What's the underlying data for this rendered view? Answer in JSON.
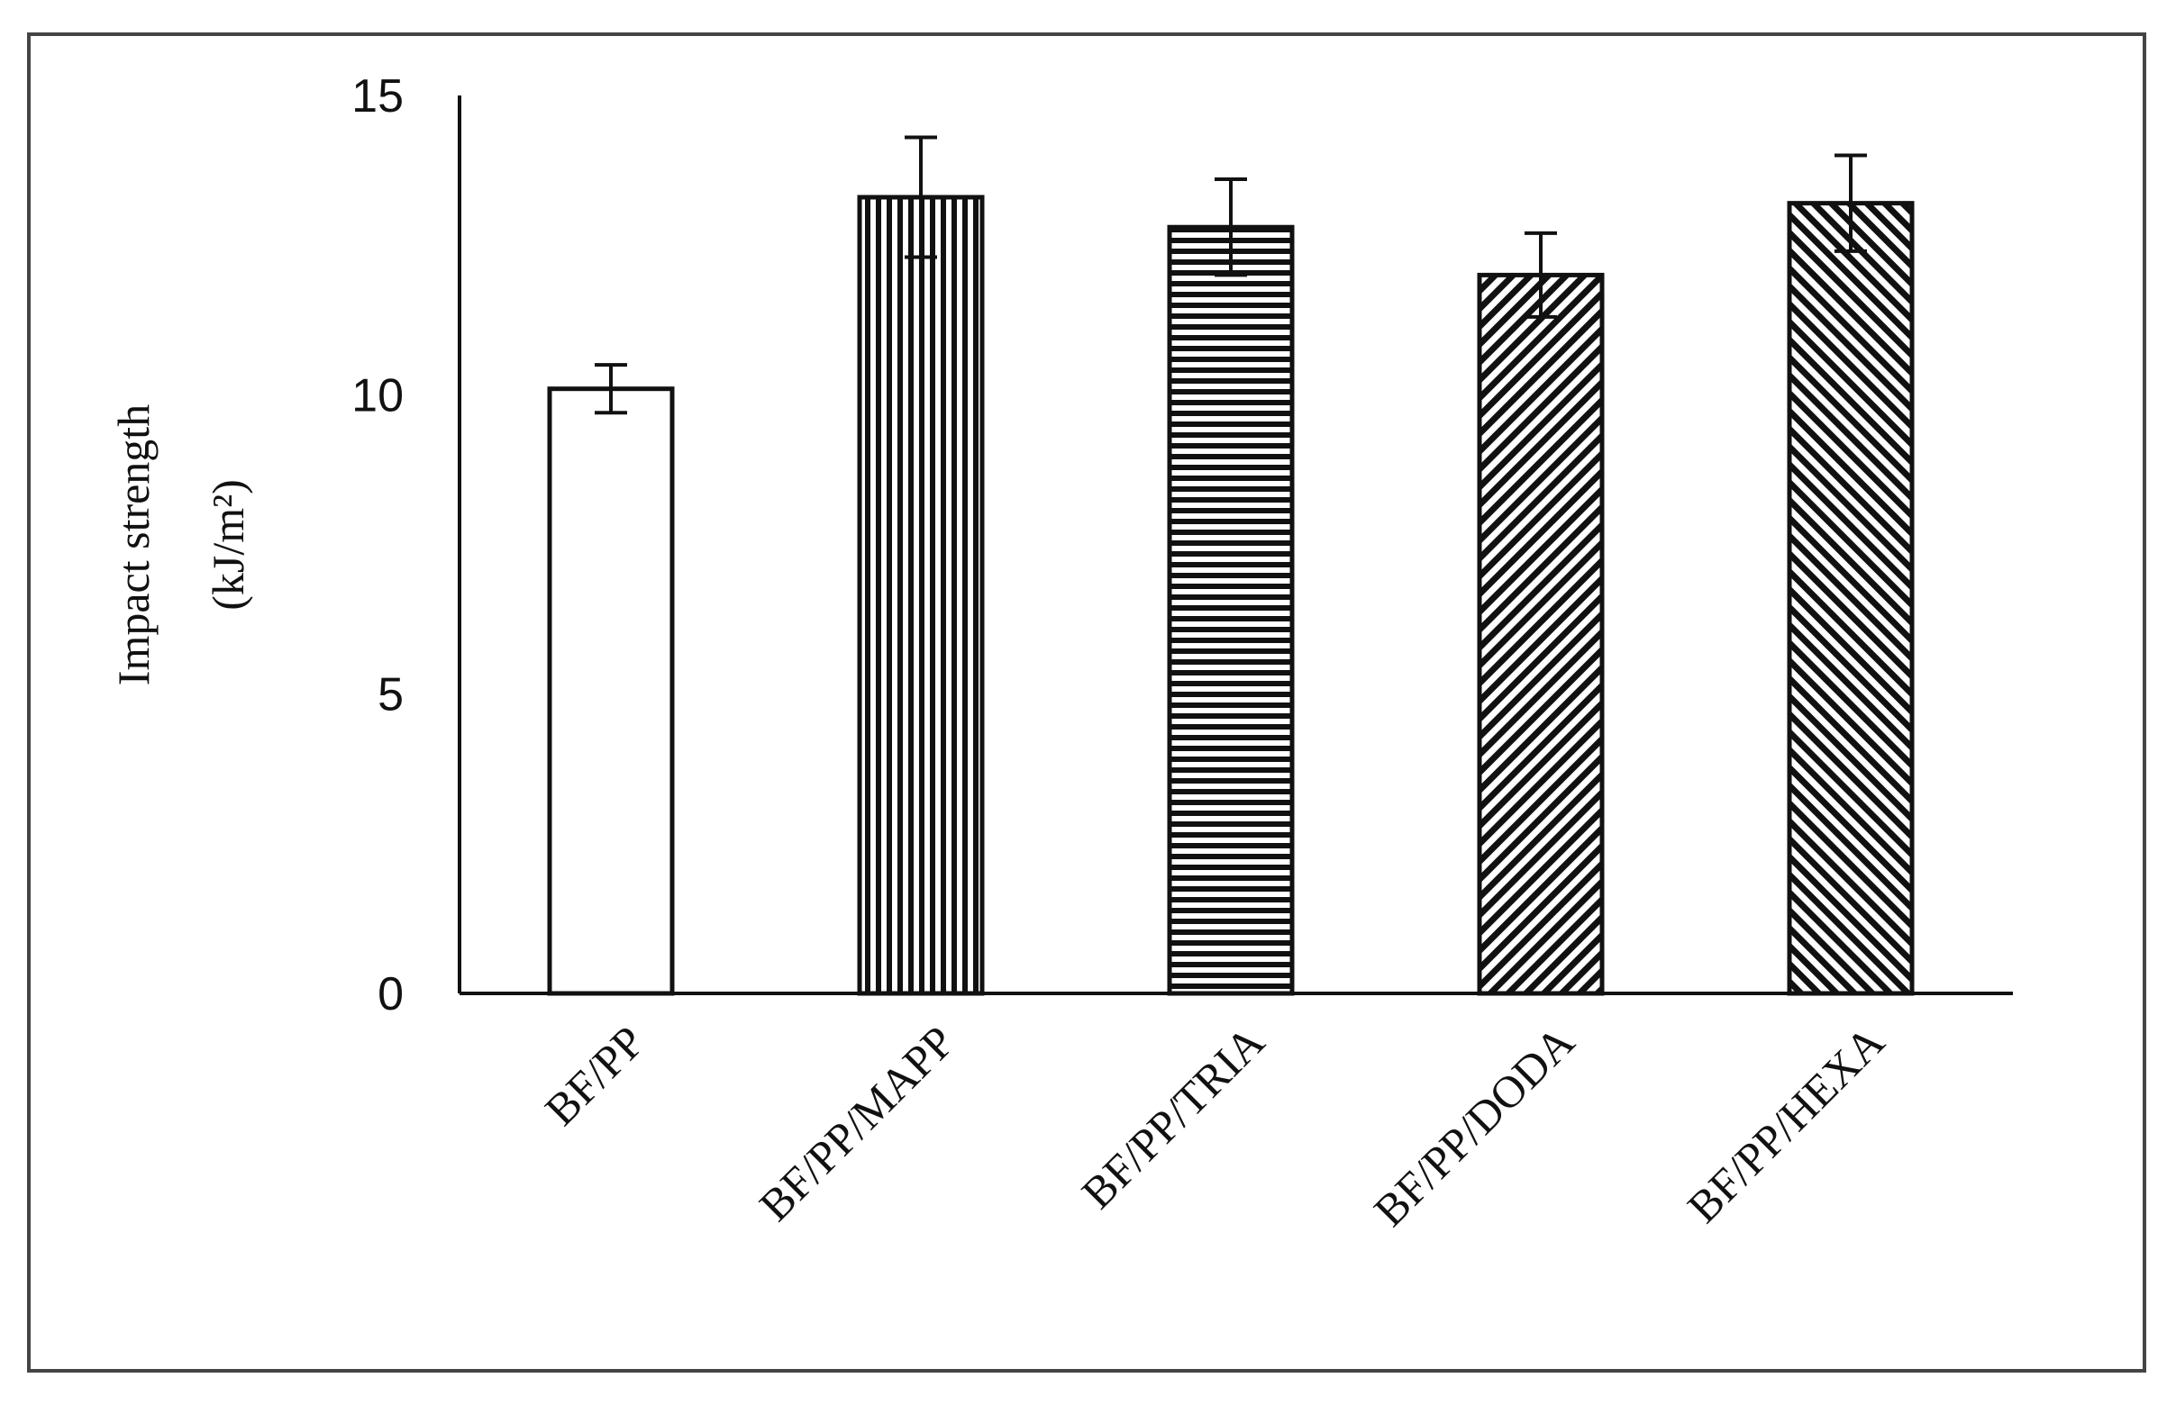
{
  "chart_data": {
    "type": "bar",
    "title": "",
    "xlabel": "",
    "ylabel": "Impact strength",
    "ylabel_unit": "(kJ/m²)",
    "ylim": [
      0,
      15
    ],
    "yticks": [
      "0",
      "5",
      "10",
      "15"
    ],
    "grid": false,
    "categories": [
      "BF/PP",
      "BF/PP/MAPP",
      "BF/PP/TRIA",
      "BF/PP/DODA",
      "BF/PP/HEXA"
    ],
    "values": [
      10.1,
      13.3,
      12.8,
      12.0,
      13.2
    ],
    "errors": [
      0.4,
      1.0,
      0.8,
      0.7,
      0.8
    ],
    "patterns": [
      "none",
      "vertical",
      "horizontal",
      "diag-down",
      "diag-up"
    ]
  }
}
